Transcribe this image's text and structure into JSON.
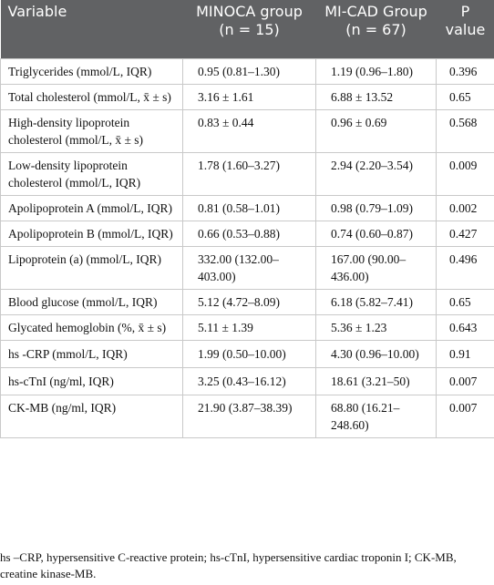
{
  "table": {
    "header": [
      "Variable",
      "MINOCA group (n = 15)",
      "MI-CAD Group (n = 67)",
      "P value"
    ],
    "rows": [
      [
        "Triglycerides (mmol/L, IQR)",
        "0.95 (0.81–1.30)",
        "1.19 (0.96–1.80)",
        "0.396"
      ],
      [
        "Total cholesterol (mmol/L, x̄ ± s)",
        "3.16 ± 1.61",
        "6.88 ± 13.52",
        "0.65"
      ],
      [
        "High-density lipoprotein cholesterol (mmol/L, x̄ ± s)",
        "0.83 ± 0.44",
        "0.96 ± 0.69",
        "0.568"
      ],
      [
        "Low-density lipoprotein cholesterol (mmol/L, IQR)",
        "1.78 (1.60–3.27)",
        "2.94 (2.20–3.54)",
        "0.009"
      ],
      [
        "Apolipoprotein A (mmol/L, IQR)",
        "0.81 (0.58–1.01)",
        "0.98 (0.79–1.09)",
        "0.002"
      ],
      [
        "Apolipoprotein B (mmol/L, IQR)",
        "0.66 (0.53–0.88)",
        "0.74 (0.60–0.87)",
        "0.427"
      ],
      [
        "Lipoprotein (a) (mmol/L, IQR)",
        "332.00 (132.00–403.00)",
        "167.00 (90.00–436.00)",
        "0.496"
      ],
      [
        "Blood glucose (mmol/L, IQR)",
        "5.12 (4.72–8.09)",
        "6.18 (5.82–7.41)",
        "0.65"
      ],
      [
        "Glycated hemoglobin (%, x̄ ± s)",
        "5.11 ± 1.39",
        "5.36 ± 1.23",
        "0.643"
      ],
      [
        "hs -CRP (mmol/L, IQR)",
        "1.99 (0.50–10.00)",
        "4.30 (0.96–10.00)",
        "0.91"
      ],
      [
        "hs-cTnI (ng/ml, IQR)",
        "3.25 (0.43–16.12)",
        "18.61 (3.21–50)",
        "0.007"
      ],
      [
        "CK-MB (ng/ml, IQR)",
        "21.90 (3.87–38.39)",
        "68.80 (16.21–248.60)",
        "0.007"
      ]
    ],
    "footnote": "hs –CRP, hypersensitive C-reactive protein; hs-cTnI, hypersensitive cardiac troponin I; CK-MB, creatine kinase-MB."
  }
}
